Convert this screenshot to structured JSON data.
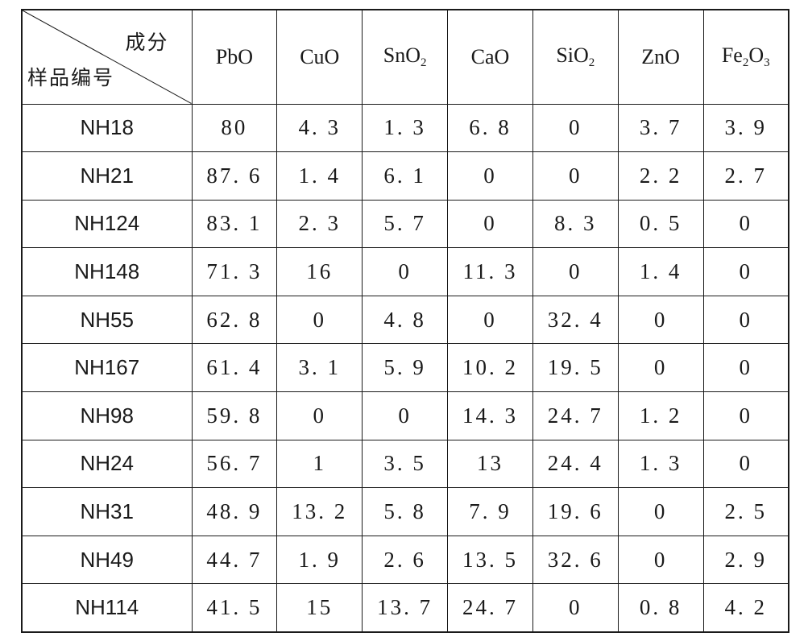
{
  "header": {
    "corner_top": "成分",
    "corner_bottom": "样品编号",
    "columns": [
      {
        "base": "PbO",
        "sub": "",
        "rest": ""
      },
      {
        "base": "CuO",
        "sub": "",
        "rest": ""
      },
      {
        "base": "SnO",
        "sub": "2",
        "rest": ""
      },
      {
        "base": "CaO",
        "sub": "",
        "rest": ""
      },
      {
        "base": "SiO",
        "sub": "2",
        "rest": ""
      },
      {
        "base": "ZnO",
        "sub": "",
        "rest": ""
      },
      {
        "base": "Fe",
        "sub": "2",
        "rest": "O",
        "sub2": "3"
      }
    ]
  },
  "rows": [
    {
      "id": "NH18",
      "values": [
        "80",
        "4. 3",
        "1. 3",
        "6. 8",
        "0",
        "3. 7",
        "3. 9"
      ]
    },
    {
      "id": "NH21",
      "values": [
        "87. 6",
        "1. 4",
        "6. 1",
        "0",
        "0",
        "2. 2",
        "2. 7"
      ]
    },
    {
      "id": "NH124",
      "values": [
        "83. 1",
        "2. 3",
        "5. 7",
        "0",
        "8. 3",
        "0. 5",
        "0"
      ]
    },
    {
      "id": "NH148",
      "values": [
        "71. 3",
        "16",
        "0",
        "11. 3",
        "0",
        "1. 4",
        "0"
      ]
    },
    {
      "id": "NH55",
      "values": [
        "62. 8",
        "0",
        "4. 8",
        "0",
        "32. 4",
        "0",
        "0"
      ]
    },
    {
      "id": "NH167",
      "values": [
        "61. 4",
        "3. 1",
        "5. 9",
        "10. 2",
        "19. 5",
        "0",
        "0"
      ]
    },
    {
      "id": "NH98",
      "values": [
        "59. 8",
        "0",
        "0",
        "14. 3",
        "24. 7",
        "1. 2",
        "0"
      ]
    },
    {
      "id": "NH24",
      "values": [
        "56. 7",
        "1",
        "3. 5",
        "13",
        "24. 4",
        "1. 3",
        "0"
      ]
    },
    {
      "id": "NH31",
      "values": [
        "48. 9",
        "13. 2",
        "5. 8",
        "7. 9",
        "19. 6",
        "0",
        "2. 5"
      ]
    },
    {
      "id": "NH49",
      "values": [
        "44. 7",
        "1. 9",
        "2. 6",
        "13. 5",
        "32. 6",
        "0",
        "2. 9"
      ]
    },
    {
      "id": "NH114",
      "values": [
        "41. 5",
        "15",
        "13. 7",
        "24. 7",
        "0",
        "0. 8",
        "4. 2"
      ]
    }
  ]
}
